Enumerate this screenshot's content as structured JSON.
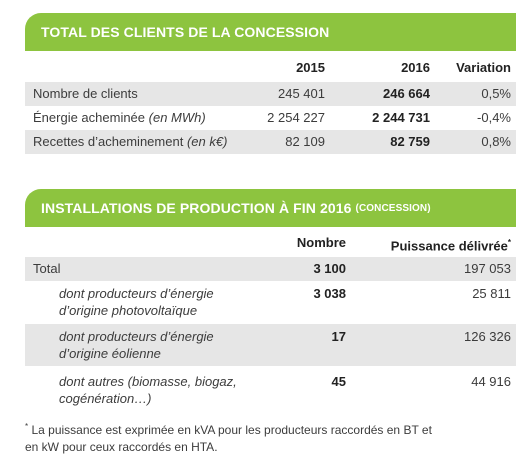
{
  "section1": {
    "title": "TOTAL DES CLIENTS DE LA CONCESSION",
    "col_2015": "2015",
    "col_2016": "2016",
    "col_variation": "Variation",
    "rows": [
      {
        "label": "Nombre de clients",
        "unit": "",
        "v2015": "245 401",
        "v2016": "246 664",
        "variation": "0,5%"
      },
      {
        "label": "Énergie acheminée",
        "unit": "(en MWh)",
        "v2015": "2 254 227",
        "v2016": "2 244 731",
        "variation": "-0,4%"
      },
      {
        "label": "Recettes d’acheminement",
        "unit": "(en k€)",
        "v2015": "82 109",
        "v2016": "82 759",
        "variation": "0,8%"
      }
    ]
  },
  "section2": {
    "title": "INSTALLATIONS DE PRODUCTION À FIN 2016",
    "title_small": "(CONCESSION)",
    "col_nombre": "Nombre",
    "col_puissance": "Puissance délivrée",
    "col_puissance_mark": "*",
    "rows": [
      {
        "label1": "Total",
        "label2": "",
        "nombre": "3 100",
        "puissance": "197 053"
      },
      {
        "label1": "dont producteurs d’énergie",
        "label2": "d’origine photovoltaïque",
        "nombre": "3 038",
        "puissance": "25 811"
      },
      {
        "label1": "dont producteurs d’énergie",
        "label2": "d’origine éolienne",
        "nombre": "17",
        "puissance": "126 326"
      },
      {
        "label1": "dont autres (biomasse, biogaz,",
        "label2": "cogénération…)",
        "nombre": "45",
        "puissance": "44 916"
      }
    ]
  },
  "footnote": {
    "mark": "*",
    "line1": " La puissance est exprimée en kVA pour les producteurs raccordés en BT et",
    "line2": "en kW pour ceux raccordés en HTA."
  },
  "colors": {
    "accent": "#8dc43f",
    "row_shade": "#e6e6e6"
  }
}
